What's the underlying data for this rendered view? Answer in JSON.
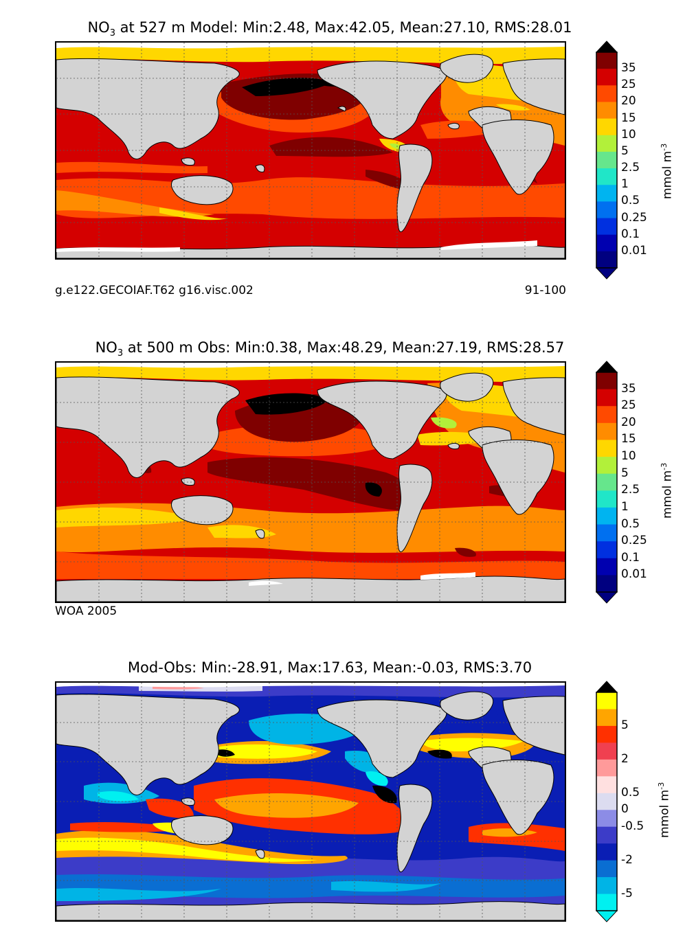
{
  "panels": [
    {
      "title_pre": "NO",
      "title_sub": "3",
      "title_post": " at 527 m Model: Min:2.48, Max:42.05, Mean:27.10, RMS:28.01",
      "footer_left": "g.e122.GECOIAF.T62 g16.visc.002",
      "footer_right": "91-100",
      "colorbar": {
        "labels": [
          "35",
          "25",
          "20",
          "15",
          "10",
          "5",
          "2.5",
          "1",
          "0.5",
          "0.25",
          "0.1",
          "0.01"
        ],
        "colors": [
          "#7f0000",
          "#d40000",
          "#ff4a00",
          "#ff8c00",
          "#ffd700",
          "#b2f03a",
          "#66e68c",
          "#20e6c8",
          "#00b4f0",
          "#0070f0",
          "#0030e0",
          "#0000b0",
          "#000080"
        ],
        "top_color": "#000000",
        "unit": "mmol m",
        "unit_sup": "-3"
      }
    },
    {
      "title_pre": "NO",
      "title_sub": "3",
      "title_post": " at 500 m Obs: Min:0.38, Max:48.29, Mean:27.19, RMS:28.57",
      "footer_left": "WOA 2005",
      "footer_right": "",
      "colorbar": {
        "labels": [
          "35",
          "25",
          "20",
          "15",
          "10",
          "5",
          "2.5",
          "1",
          "0.5",
          "0.25",
          "0.1",
          "0.01"
        ],
        "colors": [
          "#7f0000",
          "#d40000",
          "#ff4a00",
          "#ff8c00",
          "#ffd700",
          "#b2f03a",
          "#66e68c",
          "#20e6c8",
          "#00b4f0",
          "#0070f0",
          "#0030e0",
          "#0000b0",
          "#000080"
        ],
        "top_color": "#000000",
        "unit": "mmol m",
        "unit_sup": "-3"
      }
    },
    {
      "title_pre": "Mod-Obs: Min:-28.91, Max:17.63, Mean:-0.03, RMS:3.70",
      "title_sub": "",
      "title_post": "",
      "footer_left": "",
      "footer_right": "",
      "colorbar": {
        "labels": [
          "5",
          "2",
          "0.5",
          "0",
          "-0.5",
          "-2",
          "-5"
        ],
        "colors": [
          "#ffff00",
          "#ffa500",
          "#ff3000",
          "#f04050",
          "#ff9a9a",
          "#ffe0e0",
          "#dcdcf0",
          "#8c8ce6",
          "#3c3cc8",
          "#0a1eb4",
          "#0a6ed2",
          "#00b4e6",
          "#00f0f0"
        ],
        "top_color": "#000000",
        "unit": "mmol m",
        "unit_sup": "-3"
      }
    }
  ]
}
